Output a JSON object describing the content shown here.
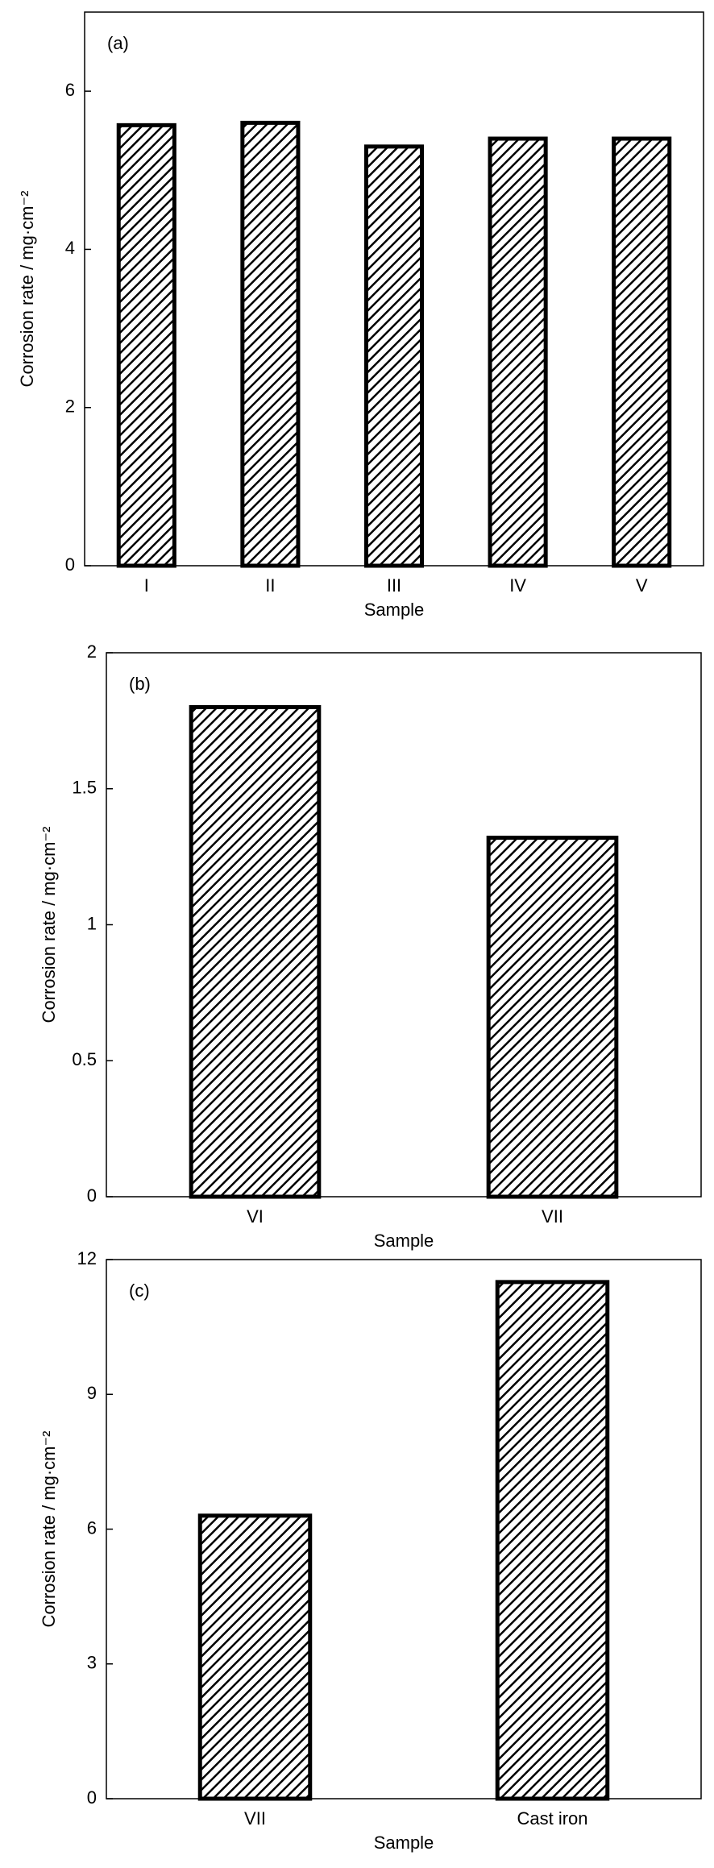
{
  "chart_data": [
    {
      "type": "bar",
      "title": "(a)",
      "x_label": "Sample",
      "y_label": "Corrosion rate / mg·cm⁻²",
      "categories": [
        "I",
        "II",
        "III",
        "IV",
        "V"
      ],
      "values": [
        5.57,
        5.6,
        5.3,
        5.4,
        5.4
      ],
      "color": "#000000",
      "ylim": [
        0,
        7
      ],
      "yticks": [
        0,
        2,
        4,
        6
      ]
    },
    {
      "type": "bar",
      "title": "(b)",
      "x_label": "Sample",
      "y_label": "Corrosion rate / mg·cm⁻²",
      "categories": [
        "VI",
        "VII"
      ],
      "values": [
        1.8,
        1.32
      ],
      "color": "#000000",
      "ylim": [
        0,
        2
      ],
      "yticks": [
        0,
        0.5,
        1,
        1.5,
        2
      ]
    },
    {
      "type": "bar",
      "title": "(c)",
      "x_label": "Sample",
      "y_label": "Corrosion rate / mg·cm⁻²",
      "categories": [
        "VII",
        "Cast iron"
      ],
      "values": [
        6.3,
        11.5
      ],
      "color": "#000000",
      "ylim": [
        0,
        12
      ],
      "yticks": [
        0,
        3,
        6,
        9,
        12
      ]
    }
  ]
}
